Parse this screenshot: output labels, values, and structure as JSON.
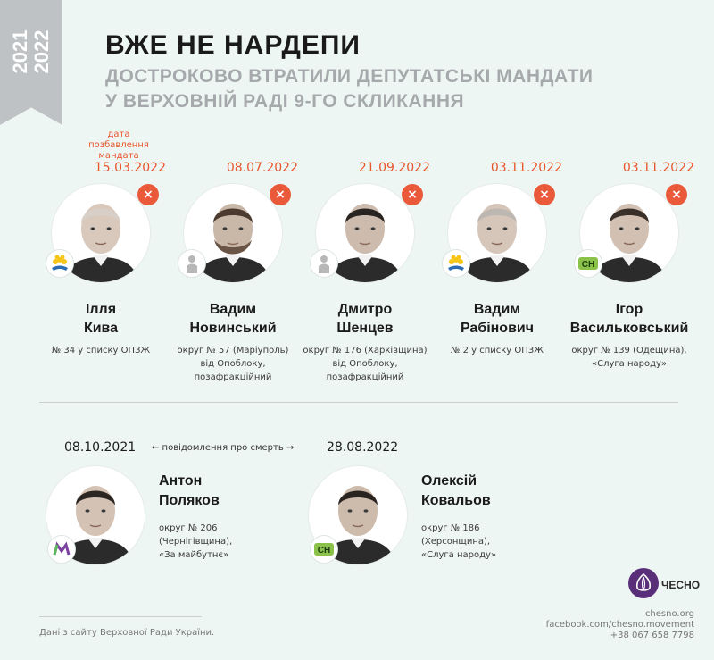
{
  "ribbon": {
    "years": [
      "2021",
      "2022"
    ]
  },
  "header": {
    "title": "ВЖЕ НЕ НАРДЕПИ",
    "subtitle_line1": "ДОСТРОКОВО ВТРАТИЛИ ДЕПУТАТСЬКІ МАНДАТИ",
    "subtitle_line2": "У ВЕРХОВНІЙ РАДІ 9-ГО СКЛИКАННЯ"
  },
  "date_note": "дата позбавлення мандата",
  "top_people": [
    {
      "date": "15.03.2022",
      "first": "Ілля",
      "last": "Кива",
      "desc": [
        "№ 34 у списку ОПЗЖ"
      ],
      "party_icon": "opzzh-flower-icon",
      "skin": "#d9c9bd",
      "hair": "#d8d0c8",
      "beard": false
    },
    {
      "date": "08.07.2022",
      "first": "Вадим",
      "last": "Новинський",
      "desc": [
        "округ № 57 (Маріуполь)",
        "від Опоблоку,",
        "позафракційний"
      ],
      "party_icon": "independent-person-icon",
      "skin": "#c9b7a8",
      "hair": "#4a3a30",
      "beard": true
    },
    {
      "date": "21.09.2022",
      "first": "Дмитро",
      "last": "Шенцев",
      "desc": [
        "округ № 176 (Харківщина)",
        "від Опоблоку,",
        "позафракційний"
      ],
      "party_icon": "independent-person-icon",
      "skin": "#cdbbad",
      "hair": "#2a2420",
      "beard": false
    },
    {
      "date": "03.11.2022",
      "first": "Вадим",
      "last": "Рабінович",
      "desc": [
        "№ 2 у списку ОПЗЖ"
      ],
      "party_icon": "opzzh-flower-icon",
      "skin": "#d6c6ba",
      "hair": "#bdb7b2",
      "beard": false
    },
    {
      "date": "03.11.2022",
      "first": "Ігор",
      "last": "Васильковський",
      "desc": [
        "округ № 139 (Одещина),",
        "«Слуга народу»"
      ],
      "party_icon": "sluha-narodu-icon",
      "skin": "#d2c1b3",
      "hair": "#3a302a",
      "beard": false
    }
  ],
  "death_note": "← повідомлення про смерть →",
  "bottom_people": [
    {
      "date": "08.10.2021",
      "first": "Антон",
      "last": "Поляков",
      "desc": [
        "округ № 206",
        "(Чернігівщина),",
        "«За майбутнє»"
      ],
      "party_icon": "za-maibutnie-icon",
      "skin": "#d4c2b4",
      "hair": "#2c2622"
    },
    {
      "date": "28.08.2022",
      "first": "Олексій",
      "last": "Ковальов",
      "desc": [
        "округ № 186",
        "(Херсонщина),",
        "«Слуга народу»"
      ],
      "party_icon": "sluha-narodu-icon",
      "skin": "#cdbbac",
      "hair": "#2a2420"
    }
  ],
  "brand": {
    "logo_text": "ЧЕСНО",
    "site": "chesno.org",
    "facebook": "facebook.com/chesno.movement",
    "phone": "+38 067 658 7798"
  },
  "source": "Дані з сайту Верховної Ради України.",
  "colors": {
    "accent": "#e8562e",
    "x_button": "#ea5a3a",
    "brand_purple": "#5a2f7a",
    "sluha_green": "#8bc34a",
    "opzzh_blue": "#2a6db5"
  }
}
